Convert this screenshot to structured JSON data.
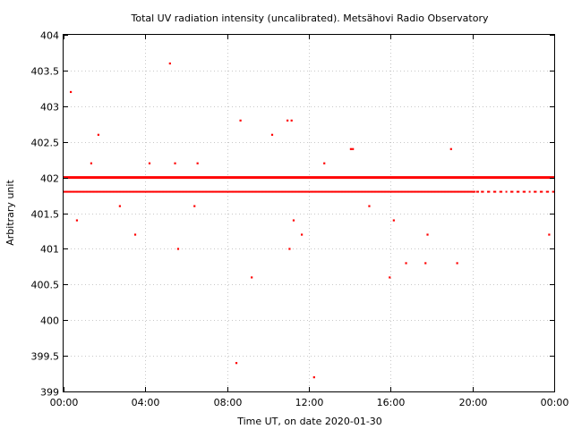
{
  "chart_data": {
    "type": "scatter",
    "title": "Total UV radiation intensity (uncalibrated). Metsähovi Radio Observatory",
    "xlabel": "Time UT, on date 2020-01-30",
    "ylabel": "Arbitrary unit",
    "xlim_hours": [
      0,
      24
    ],
    "ylim": [
      399,
      404
    ],
    "x_tick_labels": [
      "00:00",
      "04:00",
      "08:00",
      "12:00",
      "16:00",
      "20:00",
      "00:00"
    ],
    "x_tick_hours": [
      0,
      4,
      8,
      12,
      16,
      20,
      24
    ],
    "y_ticks": [
      399,
      399.5,
      400,
      400.5,
      401,
      401.5,
      402,
      402.5,
      403,
      403.5,
      404
    ],
    "y_tick_labels": [
      "399",
      "399.5",
      "400",
      "400.5",
      "401",
      "401.5",
      "402",
      "402.5",
      "403",
      "403.5",
      "404"
    ],
    "grid": true,
    "marker_color": "#ff0000",
    "baseline_series": [
      {
        "y": 402.0,
        "x_range": [
          0,
          24
        ]
      },
      {
        "y": 401.8,
        "x_range": [
          0,
          24
        ]
      }
    ],
    "outliers": [
      {
        "x": 0.35,
        "y": 403.2
      },
      {
        "x": 0.65,
        "y": 401.4
      },
      {
        "x": 1.35,
        "y": 402.2
      },
      {
        "x": 1.7,
        "y": 402.6
      },
      {
        "x": 2.75,
        "y": 401.6
      },
      {
        "x": 3.5,
        "y": 401.2
      },
      {
        "x": 4.2,
        "y": 402.2
      },
      {
        "x": 5.2,
        "y": 403.6
      },
      {
        "x": 5.45,
        "y": 402.2
      },
      {
        "x": 5.6,
        "y": 401.0
      },
      {
        "x": 6.4,
        "y": 401.6
      },
      {
        "x": 6.55,
        "y": 402.2
      },
      {
        "x": 8.45,
        "y": 399.4
      },
      {
        "x": 8.65,
        "y": 402.8
      },
      {
        "x": 9.2,
        "y": 400.6
      },
      {
        "x": 10.2,
        "y": 402.6
      },
      {
        "x": 10.95,
        "y": 402.8
      },
      {
        "x": 11.15,
        "y": 402.8
      },
      {
        "x": 11.05,
        "y": 401.0
      },
      {
        "x": 11.25,
        "y": 401.4
      },
      {
        "x": 11.65,
        "y": 401.2
      },
      {
        "x": 12.25,
        "y": 399.2
      },
      {
        "x": 12.75,
        "y": 402.2
      },
      {
        "x": 14.05,
        "y": 402.4
      },
      {
        "x": 14.15,
        "y": 402.4
      },
      {
        "x": 14.95,
        "y": 401.6
      },
      {
        "x": 15.95,
        "y": 400.6
      },
      {
        "x": 16.15,
        "y": 401.4
      },
      {
        "x": 16.75,
        "y": 400.8
      },
      {
        "x": 17.7,
        "y": 400.8
      },
      {
        "x": 17.8,
        "y": 401.2
      },
      {
        "x": 18.95,
        "y": 402.4
      },
      {
        "x": 19.25,
        "y": 400.8
      },
      {
        "x": 23.75,
        "y": 401.2
      }
    ]
  }
}
